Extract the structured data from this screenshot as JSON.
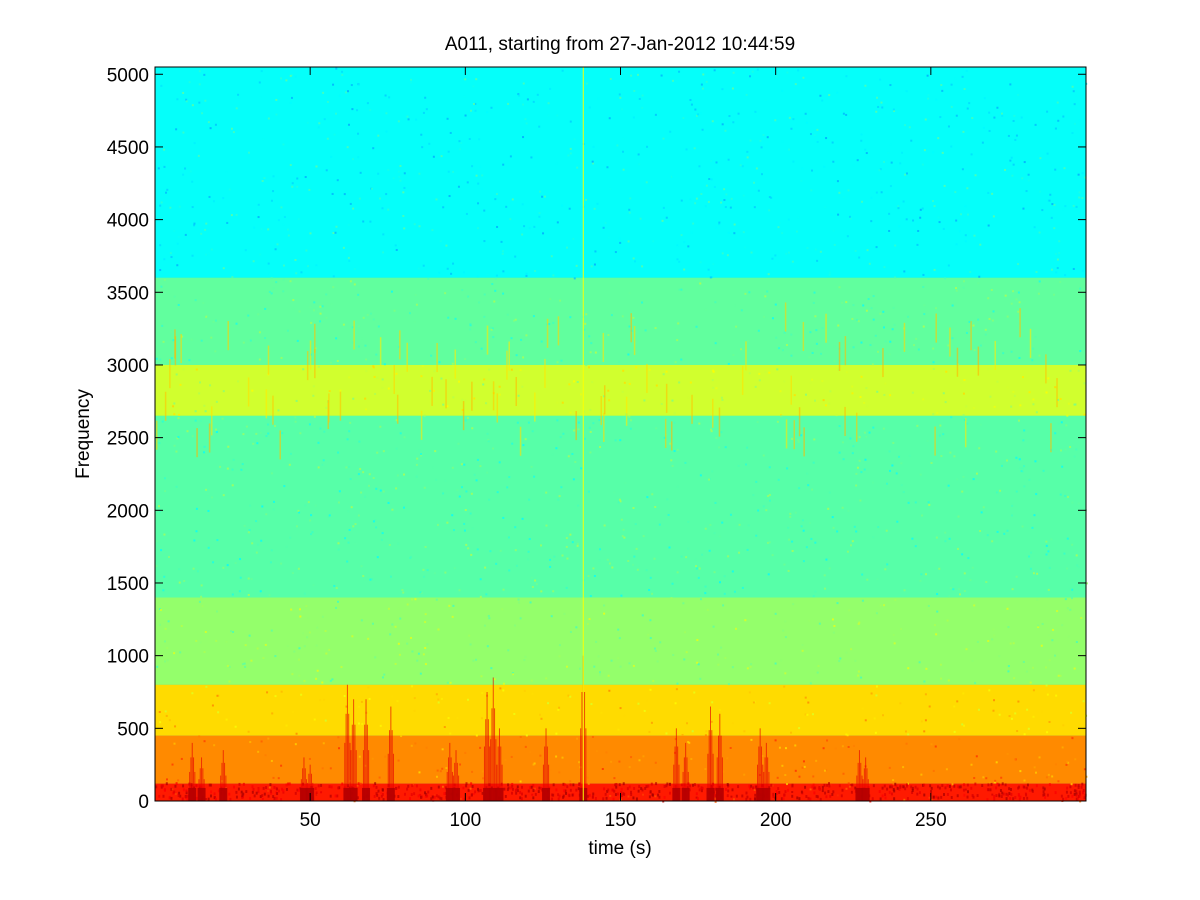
{
  "chart_data": {
    "type": "heatmap",
    "title": "A011, starting from 27-Jan-2012 10:44:59",
    "xlabel": "time (s)",
    "ylabel": "Frequency",
    "xlim": [
      0,
      300
    ],
    "ylim": [
      0,
      5050
    ],
    "xticks": [
      50,
      100,
      150,
      200,
      250
    ],
    "yticks": [
      0,
      500,
      1000,
      1500,
      2000,
      2500,
      3000,
      3500,
      4000,
      4500,
      5000
    ],
    "grid": false,
    "colormap": "jet",
    "colors": {
      "high_band_lowest": "#2ee6c8",
      "high_band": "#3cecc0",
      "mid_band": "#62f0a2",
      "harmonic_band": "#b0f050",
      "low_band": "#e8f020",
      "low_energy": "#ffd000",
      "burst": "#d80000"
    },
    "bands": [
      {
        "f_low": 3600,
        "f_high": 5050,
        "level": 0.38
      },
      {
        "f_low": 3000,
        "f_high": 3600,
        "level": 0.47
      },
      {
        "f_low": 2650,
        "f_high": 3000,
        "level": 0.58
      },
      {
        "f_low": 1400,
        "f_high": 2650,
        "level": 0.46
      },
      {
        "f_low": 800,
        "f_high": 1400,
        "level": 0.52
      },
      {
        "f_low": 450,
        "f_high": 800,
        "level": 0.66
      },
      {
        "f_low": 120,
        "f_high": 450,
        "level": 0.74
      },
      {
        "f_low": 0,
        "f_high": 120,
        "level": 0.85
      }
    ],
    "bursts": [
      {
        "t": 12,
        "f_max": 400
      },
      {
        "t": 15,
        "f_max": 300
      },
      {
        "t": 22,
        "f_max": 350
      },
      {
        "t": 48,
        "f_max": 300
      },
      {
        "t": 50,
        "f_max": 250
      },
      {
        "t": 62,
        "f_max": 800
      },
      {
        "t": 64,
        "f_max": 700
      },
      {
        "t": 68,
        "f_max": 700
      },
      {
        "t": 76,
        "f_max": 650
      },
      {
        "t": 95,
        "f_max": 400
      },
      {
        "t": 97,
        "f_max": 350
      },
      {
        "t": 107,
        "f_max": 750
      },
      {
        "t": 109,
        "f_max": 850
      },
      {
        "t": 111,
        "f_max": 500
      },
      {
        "t": 126,
        "f_max": 500
      },
      {
        "t": 138,
        "f_max": 1000
      },
      {
        "t": 168,
        "f_max": 500
      },
      {
        "t": 171,
        "f_max": 400
      },
      {
        "t": 179,
        "f_max": 650
      },
      {
        "t": 182,
        "f_max": 600
      },
      {
        "t": 195,
        "f_max": 500
      },
      {
        "t": 197,
        "f_max": 400
      },
      {
        "t": 227,
        "f_max": 350
      },
      {
        "t": 229,
        "f_max": 300
      }
    ],
    "broadband_line": {
      "t": 138
    }
  }
}
